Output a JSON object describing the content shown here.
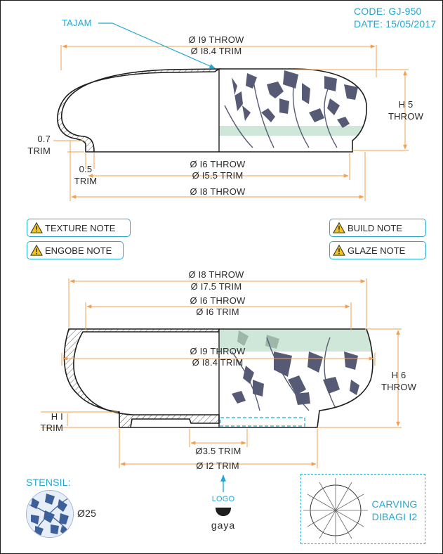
{
  "header": {
    "code": "CODE: GJ-950",
    "date": "DATE: 15/05/2017"
  },
  "top_profile": {
    "tajam_label": "TAJAM",
    "rim_throw": "Ø I9 THROW",
    "rim_trim": "Ø I8.4 TRIM",
    "height_value": "H 5",
    "height_label": "THROW",
    "lip_value": "0.7",
    "lip_label": "TRIM",
    "foot_value": "0.5",
    "foot_label": "TRIM",
    "inner_throw": "Ø I6 THROW",
    "inner_trim": "Ø I5.5 TRIM",
    "base_throw": "Ø I8 THROW"
  },
  "notes": {
    "texture": "TEXTURE NOTE",
    "engobe": "ENGOBE NOTE",
    "build": "BUILD NOTE",
    "glaze": "GLAZE NOTE"
  },
  "bottom_profile": {
    "rim_throw": "Ø I8 THROW",
    "rim_trim": "Ø I7.5 TRIM",
    "opening_throw": "Ø I6 THROW",
    "opening_trim": "Ø I6 TRIM",
    "belly_throw": "Ø I9 THROW",
    "belly_trim": "Ø I8.4 TRIM",
    "height_value": "H 6",
    "height_label": "THROW",
    "foot_value": "H I",
    "foot_label": "TRIM",
    "recess_trim": "Ø3.5 TRIM",
    "foot_trim": "Ø I2 TRIM"
  },
  "stensil": {
    "label": "STENSIL:",
    "size": "Ø25"
  },
  "logo": {
    "label": "LOGO",
    "brand": "gaya"
  },
  "carving": {
    "line1": "CARVING",
    "line2": "DIBAGI I2"
  },
  "colors": {
    "dimension": "#f0a050",
    "accent": "#22a8d4",
    "outline": "#1e1e1e",
    "stencil": "#565a74",
    "glaze_band": "#cfe7d9"
  }
}
